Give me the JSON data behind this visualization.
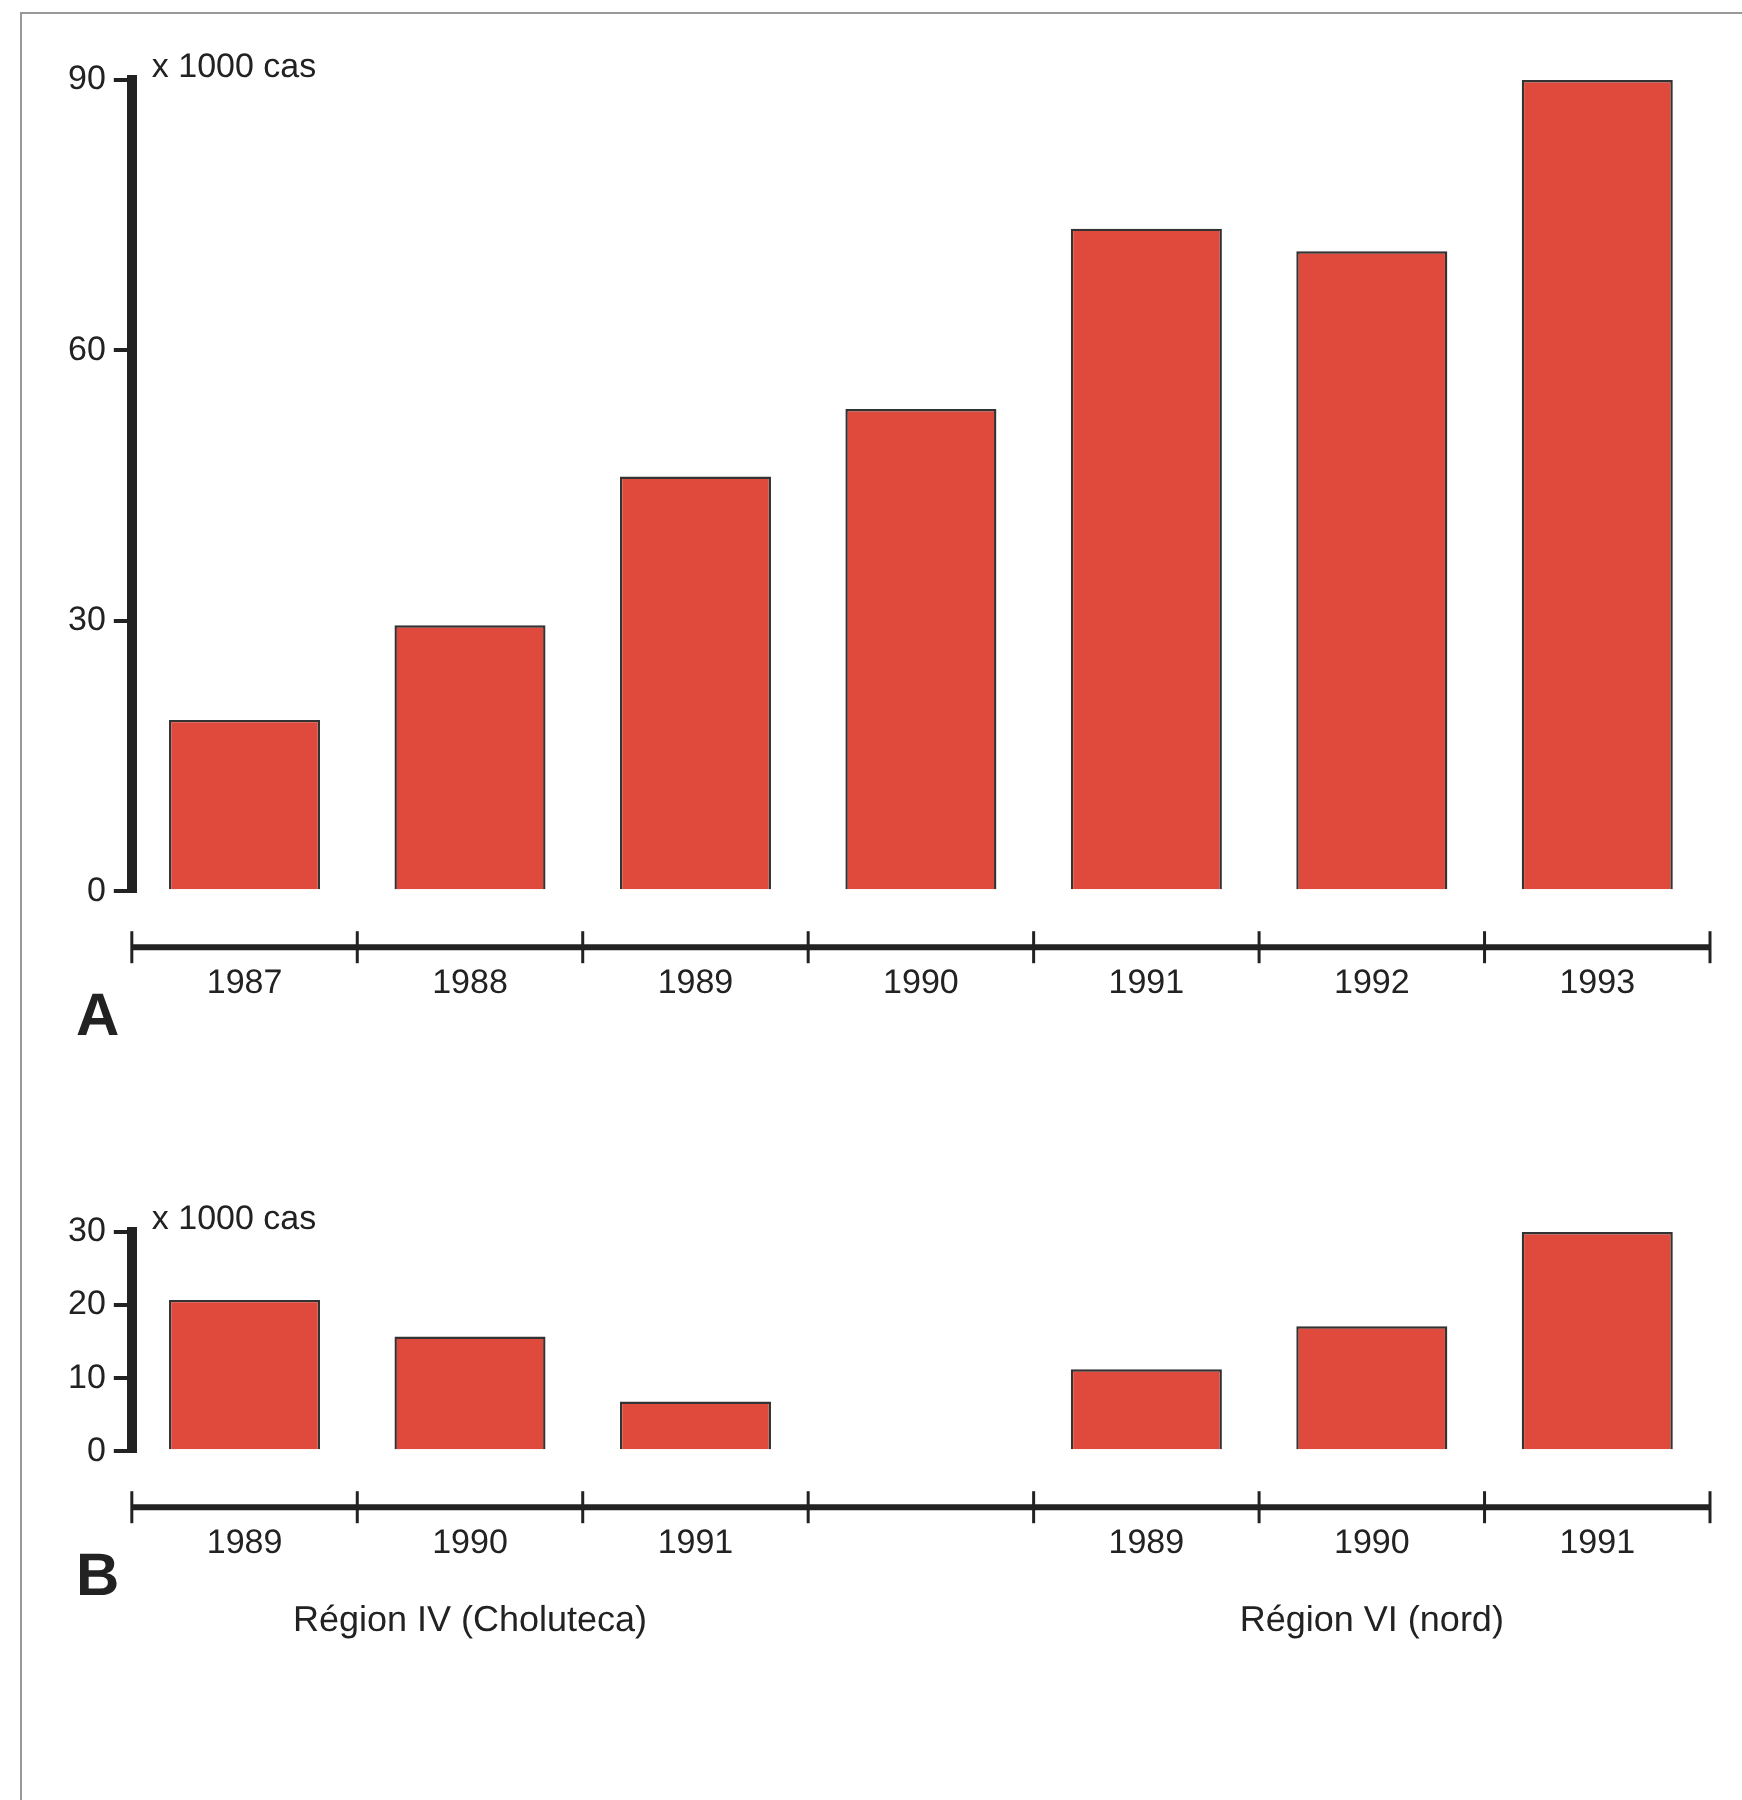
{
  "chart_data": [
    {
      "type": "bar",
      "title": "A",
      "ylabel": "x 1000 cas",
      "categories": [
        "1987",
        "1988",
        "1989",
        "1990",
        "1991",
        "1992",
        "1993"
      ],
      "values": [
        19,
        29.5,
        46,
        53.5,
        73.5,
        71,
        90
      ],
      "color": "#e04a3c",
      "ylim": [
        0,
        90
      ],
      "yticks": [
        0,
        30,
        60,
        90
      ],
      "grid": false,
      "legend": false
    },
    {
      "type": "bar",
      "title": "B",
      "ylabel": "x 1000 cas",
      "categories": [
        "1989",
        "1990",
        "1991",
        null,
        "1989",
        "1990",
        "1991"
      ],
      "values": [
        20.7,
        15.7,
        6.8,
        null,
        11.2,
        17.1,
        30
      ],
      "color": "#e04a3c",
      "ylim": [
        0,
        30
      ],
      "yticks": [
        0,
        10,
        20,
        30
      ],
      "grid": false,
      "legend": false,
      "annotations": [
        "Région IV (Choluteca)",
        "Région VI (nord)"
      ]
    }
  ]
}
